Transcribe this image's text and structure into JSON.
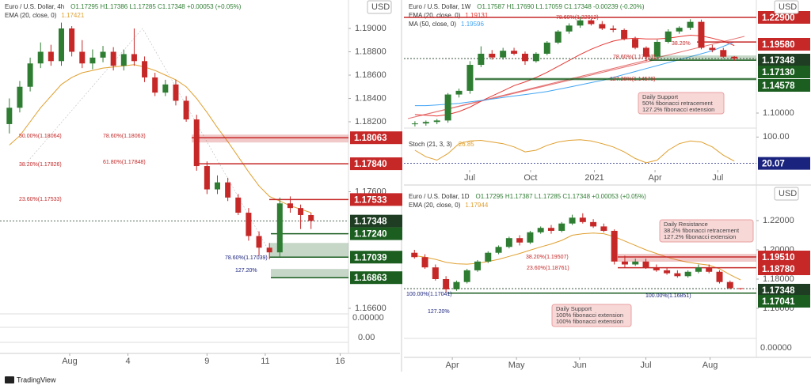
{
  "chart_data": [
    {
      "type": "candlestick",
      "title": "Euro / U.S. Dollar, 4h",
      "ohlc_text": "O1.17295 H1.17386 L1.17285 C1.17348 +0.00053 (+0.05%)",
      "currency": "USD",
      "x": [
        0,
        1,
        2,
        3,
        4,
        5,
        6,
        7,
        8,
        9,
        10,
        11,
        12,
        13,
        14,
        15,
        16,
        17,
        18,
        19,
        20,
        21,
        22,
        23,
        24,
        25,
        26,
        27,
        28,
        29
      ],
      "open": [
        1.1818,
        1.1832,
        1.185,
        1.187,
        1.188,
        1.1872,
        1.19,
        1.188,
        1.187,
        1.1875,
        1.188,
        1.1868,
        1.1878,
        1.1872,
        1.1858,
        1.1845,
        1.1852,
        1.1838,
        1.1822,
        1.1782,
        1.1762,
        1.1768,
        1.1755,
        1.1742,
        1.1722,
        1.1712,
        1.1708,
        1.175,
        1.1746,
        1.174
      ],
      "high": [
        1.184,
        1.1855,
        1.1875,
        1.1888,
        1.1886,
        1.1905,
        1.1902,
        1.189,
        1.1882,
        1.1885,
        1.1884,
        1.1882,
        1.19,
        1.1876,
        1.1862,
        1.1856,
        1.1856,
        1.1842,
        1.1826,
        1.1786,
        1.1774,
        1.1772,
        1.1758,
        1.1746,
        1.1726,
        1.1716,
        1.1755,
        1.1756,
        1.1749,
        1.1742
      ],
      "low": [
        1.181,
        1.1828,
        1.1846,
        1.1866,
        1.1868,
        1.1868,
        1.1876,
        1.1866,
        1.1865,
        1.1871,
        1.1864,
        1.1864,
        1.1868,
        1.1854,
        1.1842,
        1.1842,
        1.1834,
        1.182,
        1.1778,
        1.1758,
        1.1758,
        1.1752,
        1.174,
        1.1718,
        1.1705,
        1.1702,
        1.1704,
        1.1742,
        1.1728,
        1.1728
      ],
      "close": [
        1.1832,
        1.185,
        1.187,
        1.188,
        1.1872,
        1.19,
        1.188,
        1.187,
        1.1875,
        1.188,
        1.1868,
        1.1878,
        1.1872,
        1.1858,
        1.1845,
        1.1852,
        1.1838,
        1.1822,
        1.1782,
        1.1762,
        1.1768,
        1.1755,
        1.1742,
        1.1722,
        1.1712,
        1.1708,
        1.175,
        1.1746,
        1.174,
        1.1735
      ],
      "indicators": [
        {
          "name": "EMA (20, close, 0)",
          "value": 1.17421,
          "color": "#e0a030",
          "values": [
            1.18,
            1.1808,
            1.182,
            1.1832,
            1.1842,
            1.1852,
            1.1858,
            1.1862,
            1.1864,
            1.1866,
            1.1867,
            1.1868,
            1.1869,
            1.1867,
            1.1864,
            1.186,
            1.1856,
            1.185,
            1.184,
            1.1828,
            1.1815,
            1.1803,
            1.179,
            1.1777,
            1.1765,
            1.1756,
            1.1752,
            1.1748,
            1.1745,
            1.1742
          ]
        }
      ],
      "xlim": [
        -0.9,
        32.6
      ],
      "xticks": [
        {
          "value": 5.8,
          "label": "Aug"
        },
        {
          "value": 11.4,
          "label": "4"
        },
        {
          "value": 19,
          "label": "9"
        },
        {
          "value": 24.6,
          "label": "11"
        },
        {
          "value": 31.8,
          "label": "16"
        }
      ],
      "ylim": [
        1.16566,
        1.19244
      ],
      "yticks": [
        {
          "value": 1.19,
          "label": "1.19000"
        },
        {
          "value": 1.188,
          "label": "1.18800"
        },
        {
          "value": 1.186,
          "label": "1.18600"
        },
        {
          "value": 1.184,
          "label": "1.18400"
        },
        {
          "value": 1.182,
          "label": "1.18200"
        },
        {
          "value": 1.176,
          "label": "1.17600"
        },
        {
          "value": 1.166,
          "label": "1.16600"
        }
      ],
      "levels": [
        {
          "value": 1.18063,
          "color": "#c62828"
        },
        {
          "value": 1.1784,
          "label": "1.17840",
          "color": "#c62828"
        },
        {
          "value": 1.17533,
          "color": "#c62828"
        },
        {
          "value": 1.17348,
          "color": "#1e3d22",
          "dashed": true
        },
        {
          "value": 1.1724,
          "label": "1.17240",
          "color": "#1b5e20"
        },
        {
          "value": 1.17039,
          "color": "#1b5e20"
        },
        {
          "value": 1.16863,
          "color": "#1b5e20"
        }
      ],
      "annotations": [
        "50.00%(1.18064)",
        "78.60%(1.18063)",
        "38.20%(1.17826)",
        "61.80%(1.17848)",
        "23.60%(1.17533)",
        "78.60%(1.17039)",
        "127.20%"
      ],
      "pane_labels": [
        "0.00000",
        "0.00"
      ]
    },
    {
      "type": "candlestick",
      "title": "Euro / U.S. Dollar, 1W",
      "ohlc_text": "O1.17587 H1.17690 L1.17059 C1.17348 -0.00239 (-0.20%)",
      "currency": "USD",
      "x": [
        0,
        1,
        2,
        3,
        4,
        5,
        6,
        7,
        8,
        9,
        10,
        11,
        12,
        13,
        14,
        15,
        16,
        17,
        18,
        19,
        20,
        21,
        22,
        23,
        24,
        25,
        26,
        27,
        28,
        29
      ],
      "open": [
        1.085,
        1.086,
        1.088,
        1.09,
        1.125,
        1.13,
        1.165,
        1.18,
        1.175,
        1.184,
        1.18,
        1.17,
        1.18,
        1.195,
        1.21,
        1.218,
        1.225,
        1.22,
        1.214,
        1.212,
        1.2,
        1.188,
        1.176,
        1.196,
        1.21,
        1.215,
        1.223,
        1.188,
        1.185,
        1.176
      ],
      "high": [
        1.089,
        1.09,
        1.092,
        1.127,
        1.133,
        1.17,
        1.19,
        1.185,
        1.188,
        1.188,
        1.183,
        1.182,
        1.197,
        1.212,
        1.221,
        1.23,
        1.227,
        1.224,
        1.218,
        1.214,
        1.203,
        1.19,
        1.199,
        1.213,
        1.217,
        1.2265,
        1.226,
        1.192,
        1.188,
        1.1769
      ],
      "low": [
        1.082,
        1.083,
        1.085,
        1.087,
        1.121,
        1.126,
        1.162,
        1.172,
        1.172,
        1.178,
        1.165,
        1.168,
        1.178,
        1.193,
        1.207,
        1.215,
        1.218,
        1.212,
        1.209,
        1.198,
        1.186,
        1.17,
        1.173,
        1.194,
        1.207,
        1.212,
        1.186,
        1.182,
        1.174,
        1.1706
      ],
      "close": [
        1.086,
        1.088,
        1.09,
        1.125,
        1.13,
        1.165,
        1.18,
        1.175,
        1.184,
        1.18,
        1.17,
        1.18,
        1.195,
        1.21,
        1.218,
        1.225,
        1.22,
        1.214,
        1.212,
        1.2,
        1.188,
        1.176,
        1.196,
        1.21,
        1.215,
        1.223,
        1.188,
        1.185,
        1.176,
        1.1735
      ],
      "indicators": [
        {
          "name": "EMA (20, close, 0)",
          "value": 1.19131,
          "color": "#e53935",
          "values": [
            1.098,
            1.097,
            1.096,
            1.098,
            1.102,
            1.108,
            1.116,
            1.123,
            1.13,
            1.137,
            1.142,
            1.148,
            1.155,
            1.163,
            1.171,
            1.179,
            1.186,
            1.192,
            1.197,
            1.2,
            1.201,
            1.2,
            1.2,
            1.201,
            1.203,
            1.205,
            1.204,
            1.201,
            1.197,
            1.191
          ]
        },
        {
          "name": "MA (50, close, 0)",
          "value": 1.19596,
          "color": "#42a5f5",
          "values": [
            1.11,
            1.11,
            1.111,
            1.112,
            1.113,
            1.115,
            1.117,
            1.119,
            1.121,
            1.123,
            1.125,
            1.127,
            1.129,
            1.132,
            1.135,
            1.138,
            1.141,
            1.144,
            1.148,
            1.152,
            1.156,
            1.16,
            1.164,
            1.168,
            1.172,
            1.176,
            1.18,
            1.184,
            1.19,
            1.196
          ]
        }
      ],
      "xlim": [
        -1,
        31
      ],
      "xticks": [
        {
          "value": 4.97,
          "label": "Jul"
        },
        {
          "value": 10.5,
          "label": "Oct"
        },
        {
          "value": 16.3,
          "label": "2021"
        },
        {
          "value": 21.8,
          "label": "Apr"
        },
        {
          "value": 27.5,
          "label": "Jul"
        }
      ],
      "ylim": [
        1.08188,
        1.25245
      ],
      "yticks": [
        {
          "value": 1.1,
          "label": "1.10000"
        }
      ],
      "levels": [
        {
          "value": 1.229,
          "label": "1.22900",
          "color": "#c62828"
        },
        {
          "value": 1.1958,
          "label": "1.19580",
          "color": "#c62828"
        },
        {
          "value": 1.17348,
          "color": "#1e3d22",
          "dashed": true
        },
        {
          "value": 1.1713,
          "label": "1.17130",
          "color": "#1b5e20"
        },
        {
          "value": 1.14578,
          "color": "#1b5e20"
        }
      ],
      "annotations": [
        "78.60%(1.22912)",
        "38.20%",
        "78.60%(1.17667)",
        "127.20%(1.14578)"
      ],
      "callout": [
        "Daily Support",
        "50% fibonacci retracement",
        "127.2% fibonacci extension"
      ]
    },
    {
      "type": "line",
      "title": "Stoch (21, 3, 3)",
      "x": [
        0,
        1,
        2,
        3,
        4,
        5,
        6,
        7,
        8,
        9,
        10,
        11,
        12,
        13,
        14,
        15,
        16,
        17,
        18,
        19,
        20,
        21,
        22,
        23,
        24,
        25,
        26,
        27,
        28,
        29
      ],
      "indicators": [
        {
          "name": "Stoch",
          "value": 26.85,
          "color": "#e0a030",
          "values": [
            60,
            40,
            30,
            50,
            80,
            88,
            90,
            85,
            80,
            70,
            55,
            60,
            75,
            85,
            90,
            92,
            88,
            80,
            70,
            55,
            35,
            22,
            30,
            60,
            80,
            88,
            85,
            70,
            45,
            26.85
          ]
        }
      ],
      "xlim": [
        -1,
        31
      ],
      "ylim": [
        0,
        120
      ],
      "yticks": [
        {
          "value": 100,
          "label": "100.00"
        }
      ],
      "levels": [
        {
          "value": 20.07,
          "color": "#1a237e",
          "dashed": true
        }
      ]
    },
    {
      "type": "candlestick",
      "title": "Euro / U.S. Dollar, 1D",
      "ohlc_text": "O1.17295 H1.17387 L1.17285 C1.17348 +0.00053 (+0.05%)",
      "currency": "USD",
      "x": [
        0,
        1,
        2,
        3,
        4,
        5,
        6,
        7,
        8,
        9,
        10,
        11,
        12,
        13,
        14,
        15,
        16,
        17,
        18,
        19,
        20,
        21,
        22,
        23,
        24,
        25,
        26,
        27,
        28,
        29,
        30,
        31
      ],
      "open": [
        1.198,
        1.195,
        1.188,
        1.18,
        1.173,
        1.178,
        1.186,
        1.192,
        1.198,
        1.202,
        1.208,
        1.205,
        1.212,
        1.215,
        1.213,
        1.218,
        1.222,
        1.219,
        1.216,
        1.213,
        1.192,
        1.19,
        1.192,
        1.188,
        1.186,
        1.184,
        1.182,
        1.185,
        1.188,
        1.185,
        1.178,
        1.1738
      ],
      "high": [
        1.2,
        1.197,
        1.19,
        1.182,
        1.179,
        1.187,
        1.193,
        1.199,
        1.203,
        1.209,
        1.21,
        1.213,
        1.216,
        1.217,
        1.219,
        1.224,
        1.225,
        1.221,
        1.218,
        1.214,
        1.196,
        1.194,
        1.194,
        1.19,
        1.188,
        1.186,
        1.186,
        1.19,
        1.19,
        1.186,
        1.179,
        1.1739
      ],
      "low": [
        1.194,
        1.187,
        1.179,
        1.1704,
        1.172,
        1.177,
        1.185,
        1.191,
        1.197,
        1.201,
        1.203,
        1.204,
        1.211,
        1.211,
        1.212,
        1.217,
        1.218,
        1.215,
        1.212,
        1.19,
        1.188,
        1.189,
        1.187,
        1.185,
        1.183,
        1.181,
        1.181,
        1.184,
        1.184,
        1.177,
        1.173,
        1.1728
      ],
      "close": [
        1.195,
        1.188,
        1.18,
        1.173,
        1.178,
        1.186,
        1.192,
        1.198,
        1.202,
        1.208,
        1.205,
        1.212,
        1.215,
        1.213,
        1.218,
        1.222,
        1.219,
        1.216,
        1.213,
        1.192,
        1.19,
        1.192,
        1.188,
        1.186,
        1.184,
        1.182,
        1.185,
        1.188,
        1.185,
        1.178,
        1.1738,
        1.1735
      ],
      "indicators": [
        {
          "name": "EMA (20, close, 0)",
          "value": 1.17944,
          "color": "#e0a030",
          "values": [
            1.196,
            1.195,
            1.1935,
            1.1915,
            1.1905,
            1.1902,
            1.1908,
            1.192,
            1.1935,
            1.1955,
            1.1975,
            1.1998,
            1.202,
            1.204,
            1.2065,
            1.21,
            1.211,
            1.2115,
            1.211,
            1.209,
            1.206,
            1.203,
            1.2,
            1.1975,
            1.195,
            1.193,
            1.1915,
            1.1905,
            1.1895,
            1.187,
            1.183,
            1.1794
          ]
        }
      ],
      "xlim": [
        -1,
        32.5
      ],
      "xticks": [
        {
          "value": 3.6,
          "label": "Apr"
        },
        {
          "value": 9.7,
          "label": "May"
        },
        {
          "value": 15.7,
          "label": "Jun"
        },
        {
          "value": 22,
          "label": "Jul"
        },
        {
          "value": 28.1,
          "label": "Aug"
        }
      ],
      "ylim": [
        1.14378,
        1.24108
      ],
      "yticks": [
        {
          "value": 1.22,
          "label": "1.22000"
        },
        {
          "value": 1.2,
          "label": "1.20000"
        },
        {
          "value": 1.18,
          "label": "1.18000"
        },
        {
          "value": 1.16,
          "label": "1.16000"
        }
      ],
      "levels": [
        {
          "value": 1.1951,
          "label": "1.19510",
          "color": "#c62828"
        },
        {
          "value": 1.1878,
          "label": "1.18780",
          "color": "#c62828"
        },
        {
          "value": 1.17348,
          "color": "#1e3d22",
          "dashed": true
        },
        {
          "value": 1.17041,
          "color": "#1b5e20"
        }
      ],
      "annotations": [
        "38.20%(1.19507)",
        "23.60%(1.18761)",
        "100.00%(1.17041)",
        "100.00%(1.16851)",
        "127.20%"
      ],
      "callout": [
        "Daily Resistance",
        "38.2% fibonacci retracement",
        "127.2% fibonacci extension"
      ],
      "callout2": [
        "Daily Support",
        "100% fibonacci extension",
        "100% fibonacci extension"
      ],
      "pane_labels": [
        "0.00000"
      ]
    }
  ],
  "footer": "TradingView"
}
